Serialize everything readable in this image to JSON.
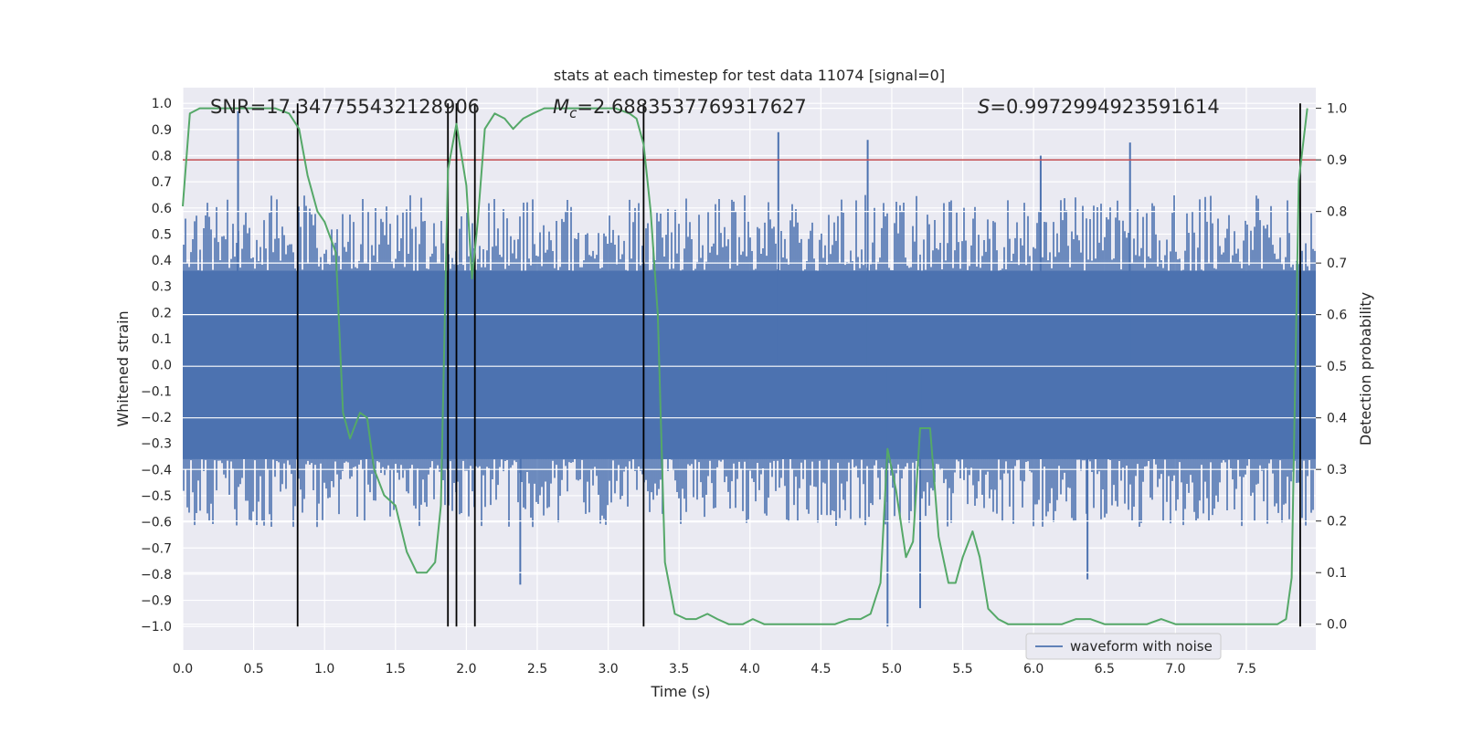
{
  "chart_data": {
    "type": "line",
    "title": "stats at each timestep for test data 11074 [signal=0]",
    "xlabel": "Time (s)",
    "ylabel": "Whitened strain",
    "y2label": "Detection probability",
    "xlim": [
      0.0,
      7.99
    ],
    "ylim": [
      -1.09,
      1.06
    ],
    "y2lim": [
      -0.05,
      1.04
    ],
    "xticks": [
      "0.0",
      "0.5",
      "1.0",
      "1.5",
      "2.0",
      "2.5",
      "3.0",
      "3.5",
      "4.0",
      "4.5",
      "5.0",
      "5.5",
      "6.0",
      "6.5",
      "7.0",
      "7.5"
    ],
    "yticks": [
      "1.0",
      "0.9",
      "0.8",
      "0.7",
      "0.6",
      "0.5",
      "0.4",
      "0.3",
      "0.2",
      "0.1",
      "0.0",
      "-0.1",
      "-0.2",
      "-0.3",
      "-0.4",
      "-0.5",
      "-0.6",
      "-0.7",
      "-0.8",
      "-0.9",
      "-1.0"
    ],
    "y2ticks": [
      "1.0",
      "0.9",
      "0.8",
      "0.7",
      "0.6",
      "0.5",
      "0.4",
      "0.3",
      "0.2",
      "0.1",
      "0.0"
    ],
    "annotations": {
      "snr": "SNR=17.347755432128906",
      "mc_symbol": "M",
      "mc_sub": "c",
      "mc_value": "=2.6883537769317627",
      "s_symbol": "S",
      "s_value": "=0.9972994923591614"
    },
    "legend": {
      "label": "waveform with noise",
      "placement": "lower-right"
    },
    "grid": true,
    "threshold": {
      "y2": 0.9,
      "color": "#c44e52"
    },
    "event_lines": [
      0.81,
      1.87,
      1.93,
      2.06,
      3.25,
      7.88
    ],
    "event_line_y_range": [
      -1.0,
      1.0
    ],
    "series": [
      {
        "name": "waveform with noise",
        "color": "#4c72b0",
        "kind": "noise",
        "core_amplitude": 0.36,
        "peak_envelope": {
          "typical_max": 0.65,
          "typical_min": -0.62
        },
        "notable_peaks": [
          {
            "x": 0.39,
            "y": 0.97
          },
          {
            "x": 2.38,
            "y": -0.84
          },
          {
            "x": 4.2,
            "y": 0.89
          },
          {
            "x": 4.83,
            "y": 0.86
          },
          {
            "x": 4.97,
            "y": -1.0
          },
          {
            "x": 5.2,
            "y": -0.93
          },
          {
            "x": 6.05,
            "y": 0.8
          },
          {
            "x": 6.68,
            "y": 0.85
          },
          {
            "x": 6.38,
            "y": -0.82
          }
        ]
      },
      {
        "name": "",
        "color": "#55a868",
        "axis": "y2",
        "x": [
          0.0,
          0.05,
          0.12,
          0.2,
          0.35,
          0.5,
          0.65,
          0.75,
          0.82,
          0.88,
          0.95,
          1.0,
          1.08,
          1.13,
          1.18,
          1.25,
          1.3,
          1.35,
          1.42,
          1.5,
          1.58,
          1.65,
          1.72,
          1.78,
          1.82,
          1.87,
          1.93,
          2.0,
          2.04,
          2.08,
          2.13,
          2.2,
          2.27,
          2.33,
          2.4,
          2.47,
          2.55,
          2.7,
          2.9,
          3.05,
          3.15,
          3.2,
          3.25,
          3.3,
          3.35,
          3.4,
          3.47,
          3.55,
          3.62,
          3.7,
          3.77,
          3.85,
          3.95,
          4.02,
          4.1,
          4.2,
          4.3,
          4.4,
          4.5,
          4.6,
          4.7,
          4.78,
          4.85,
          4.92,
          4.97,
          5.03,
          5.1,
          5.15,
          5.2,
          5.27,
          5.33,
          5.4,
          5.45,
          5.5,
          5.57,
          5.62,
          5.68,
          5.75,
          5.82,
          5.9,
          6.0,
          6.1,
          6.2,
          6.3,
          6.4,
          6.5,
          6.6,
          6.7,
          6.8,
          6.9,
          7.0,
          7.1,
          7.2,
          7.3,
          7.4,
          7.5,
          7.6,
          7.65,
          7.72,
          7.78,
          7.82,
          7.87,
          7.93
        ],
        "y": [
          0.81,
          0.99,
          1.0,
          1.0,
          1.0,
          1.0,
          1.0,
          0.99,
          0.96,
          0.87,
          0.8,
          0.78,
          0.72,
          0.41,
          0.36,
          0.41,
          0.4,
          0.3,
          0.25,
          0.23,
          0.14,
          0.1,
          0.1,
          0.12,
          0.23,
          0.88,
          0.97,
          0.85,
          0.67,
          0.78,
          0.96,
          0.99,
          0.98,
          0.96,
          0.98,
          0.99,
          1.0,
          1.0,
          1.0,
          1.0,
          0.99,
          0.98,
          0.93,
          0.8,
          0.6,
          0.12,
          0.02,
          0.01,
          0.01,
          0.02,
          0.01,
          0.0,
          0.0,
          0.01,
          0.0,
          0.0,
          0.0,
          0.0,
          0.0,
          0.0,
          0.01,
          0.01,
          0.02,
          0.08,
          0.34,
          0.26,
          0.13,
          0.16,
          0.38,
          0.38,
          0.17,
          0.08,
          0.08,
          0.13,
          0.18,
          0.13,
          0.03,
          0.01,
          0.0,
          0.0,
          0.0,
          0.0,
          0.0,
          0.01,
          0.01,
          0.0,
          0.0,
          0.0,
          0.0,
          0.01,
          0.0,
          0.0,
          0.0,
          0.0,
          0.0,
          0.0,
          0.0,
          0.0,
          0.0,
          0.01,
          0.09,
          0.86,
          1.0
        ]
      }
    ]
  }
}
